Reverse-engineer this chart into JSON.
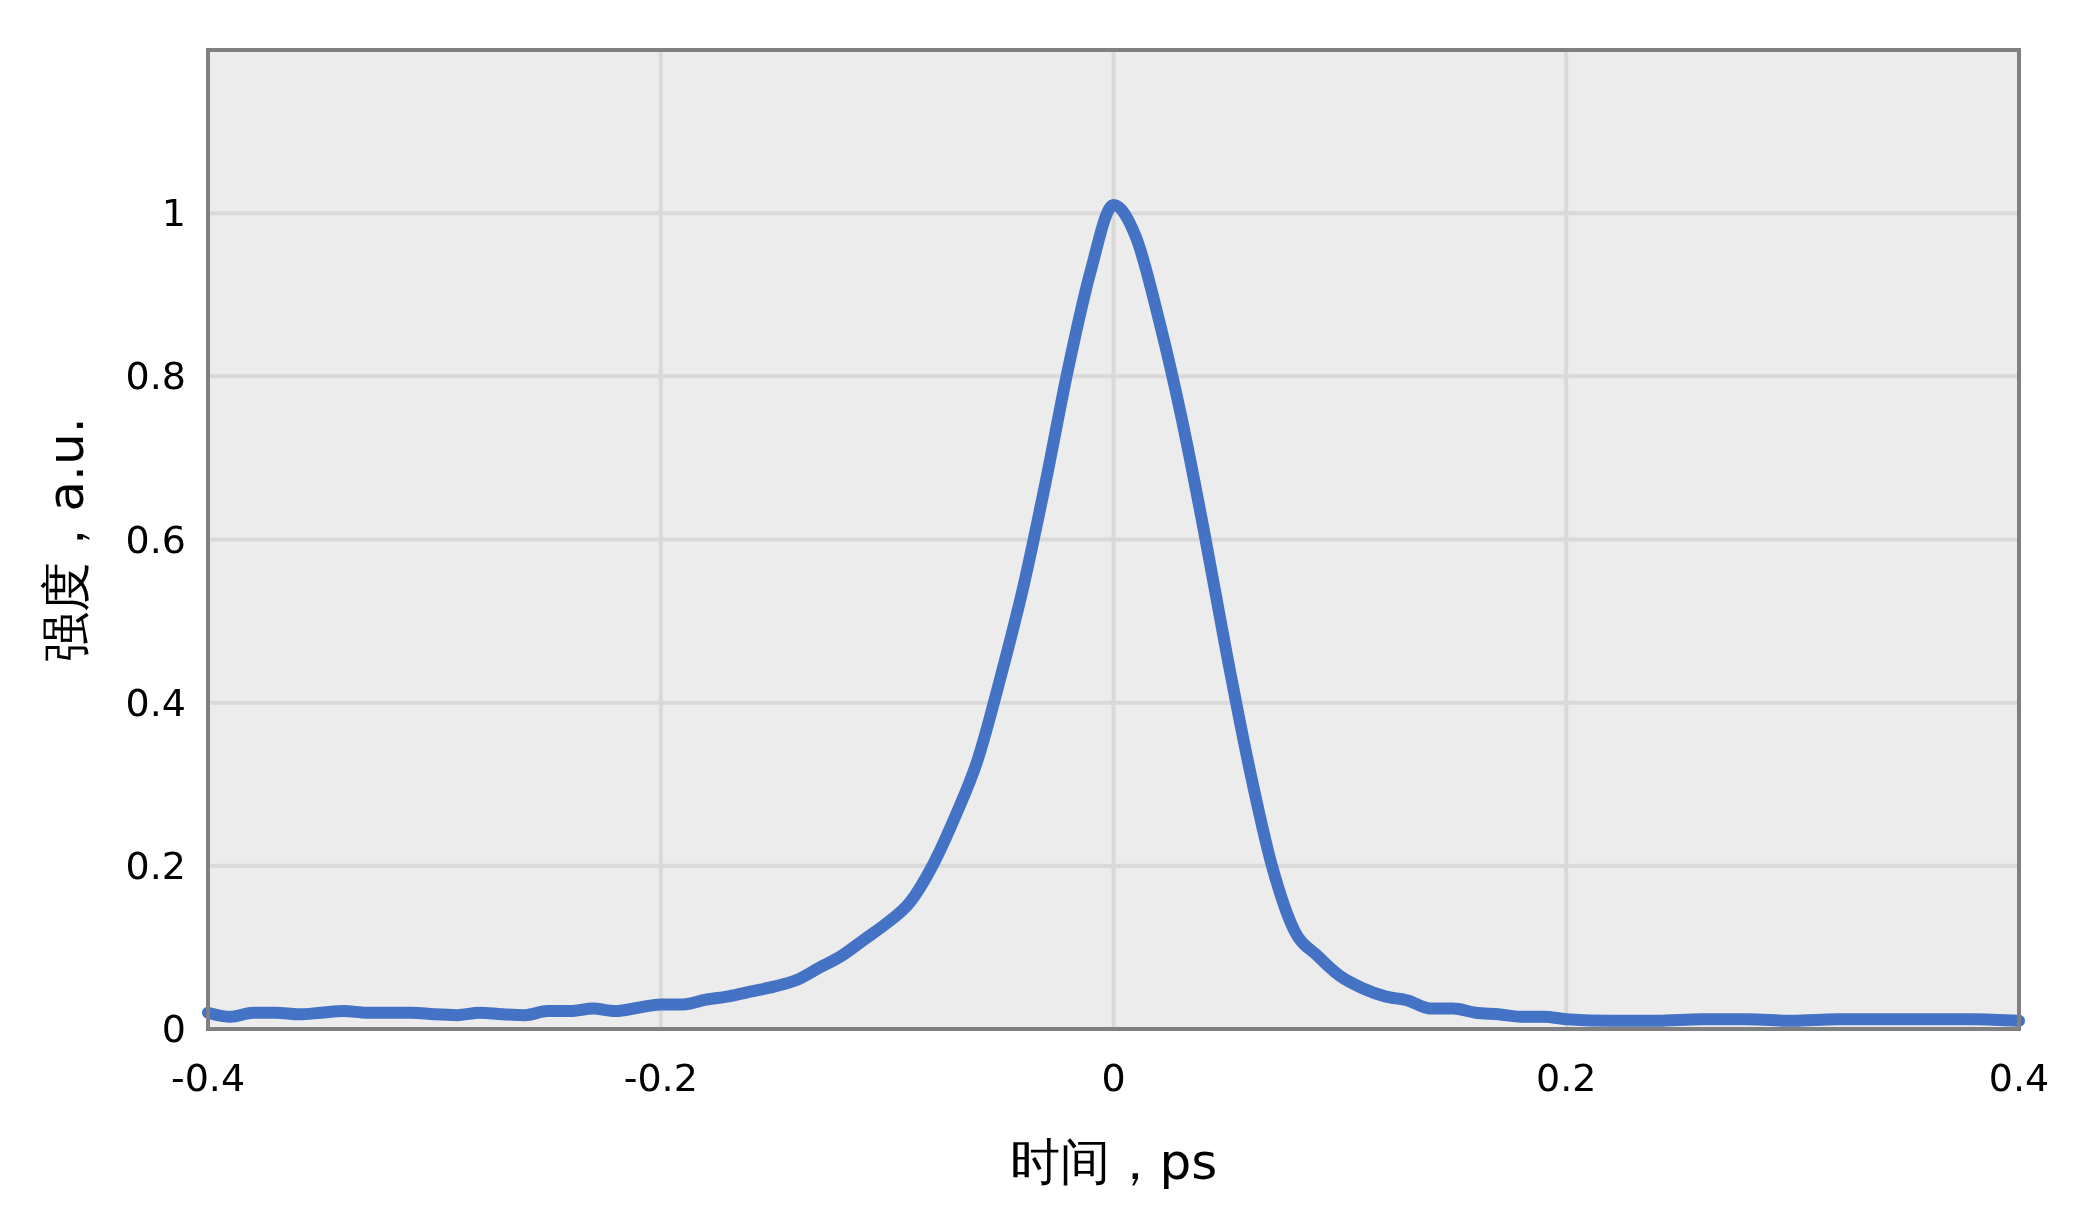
{
  "chart_data": {
    "type": "line",
    "xlabel": "时间，ps",
    "ylabel": "强度，a.u.",
    "xlim": [
      -0.4,
      0.4
    ],
    "ylim": [
      0,
      1.2
    ],
    "xticks": [
      -0.4,
      -0.2,
      0,
      0.2,
      0.4
    ],
    "yticks": [
      0,
      0.2,
      0.4,
      0.6,
      0.8,
      1
    ],
    "grid": true,
    "series": [
      {
        "color": "#4472c4",
        "x": [
          -0.4,
          -0.39,
          -0.38,
          -0.37,
          -0.36,
          -0.35,
          -0.34,
          -0.33,
          -0.32,
          -0.31,
          -0.3,
          -0.29,
          -0.28,
          -0.27,
          -0.26,
          -0.25,
          -0.24,
          -0.23,
          -0.22,
          -0.21,
          -0.2,
          -0.19,
          -0.18,
          -0.17,
          -0.16,
          -0.15,
          -0.14,
          -0.13,
          -0.12,
          -0.11,
          -0.1,
          -0.09,
          -0.08,
          -0.07,
          -0.06,
          -0.05,
          -0.04,
          -0.03,
          -0.02,
          -0.01,
          0,
          0.01,
          0.02,
          0.03,
          0.04,
          0.05,
          0.06,
          0.07,
          0.08,
          0.09,
          0.1,
          0.11,
          0.12,
          0.13,
          0.14,
          0.15,
          0.16,
          0.17,
          0.18,
          0.19,
          0.2,
          0.22,
          0.24,
          0.26,
          0.28,
          0.3,
          0.32,
          0.34,
          0.36,
          0.38,
          0.4
        ],
        "values": [
          0.02,
          0.015,
          0.02,
          0.02,
          0.018,
          0.02,
          0.022,
          0.02,
          0.02,
          0.02,
          0.018,
          0.017,
          0.02,
          0.018,
          0.017,
          0.022,
          0.022,
          0.025,
          0.022,
          0.026,
          0.03,
          0.03,
          0.036,
          0.04,
          0.046,
          0.052,
          0.06,
          0.075,
          0.09,
          0.11,
          0.13,
          0.155,
          0.2,
          0.26,
          0.33,
          0.43,
          0.54,
          0.67,
          0.81,
          0.93,
          1.01,
          0.97,
          0.87,
          0.75,
          0.61,
          0.46,
          0.32,
          0.2,
          0.12,
          0.09,
          0.065,
          0.05,
          0.04,
          0.035,
          0.025,
          0.025,
          0.02,
          0.018,
          0.015,
          0.015,
          0.012,
          0.01,
          0.01,
          0.012,
          0.012,
          0.01,
          0.012,
          0.012,
          0.012,
          0.012,
          0.01
        ]
      }
    ]
  }
}
